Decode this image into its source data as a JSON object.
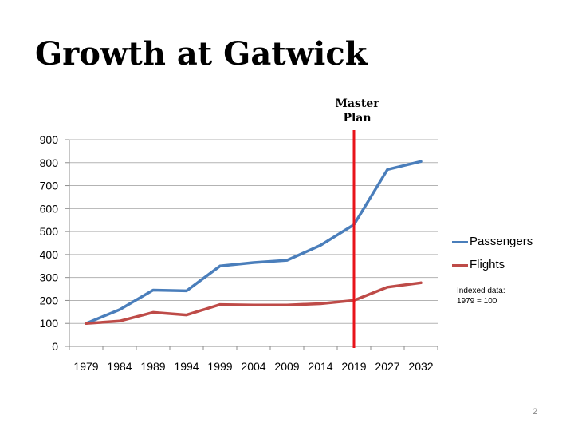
{
  "slide": {
    "title": "Growth at Gatwick",
    "page_number": "2"
  },
  "annotation": {
    "master_plan_line1": "Master",
    "master_plan_line2": "Plan",
    "master_plan_x": "2019"
  },
  "note": {
    "line1": "Indexed data:",
    "line2": "1979 = 100"
  },
  "colors": {
    "passengers": "#4a7ebb",
    "flights": "#be4b48",
    "master_plan": "#e8141b"
  },
  "chart_data": {
    "type": "line",
    "categories": [
      "1979",
      "1984",
      "1989",
      "1994",
      "1999",
      "2004",
      "2009",
      "2014",
      "2019",
      "2027",
      "2032"
    ],
    "series": [
      {
        "name": "Passengers",
        "values": [
          100,
          160,
          245,
          242,
          350,
          365,
          375,
          440,
          530,
          770,
          805
        ]
      },
      {
        "name": "Flights",
        "values": [
          100,
          110,
          148,
          137,
          182,
          180,
          180,
          186,
          200,
          258,
          277
        ]
      }
    ],
    "ylim": [
      0,
      900
    ],
    "yticks": [
      "0",
      "100",
      "200",
      "300",
      "400",
      "500",
      "600",
      "700",
      "800",
      "900"
    ],
    "grid": true,
    "legend_position": "right",
    "title": "",
    "xlabel": "",
    "ylabel": ""
  }
}
